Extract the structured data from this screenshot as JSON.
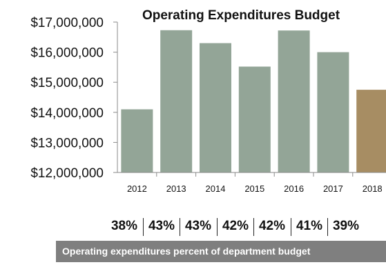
{
  "chart_data": {
    "type": "bar",
    "title": "Operating Expenditures Budget",
    "categories": [
      "2012",
      "2013",
      "2014",
      "2015",
      "2016",
      "2017",
      "2018"
    ],
    "values": [
      14100000,
      16730000,
      16300000,
      15520000,
      16720000,
      16000000,
      14750000
    ],
    "bar_colors": [
      "#93a597",
      "#93a597",
      "#93a597",
      "#93a597",
      "#93a597",
      "#93a597",
      "#a78d63"
    ],
    "ylim": [
      12000000,
      17000000
    ],
    "yticks": [
      "$12,000,000",
      "$13,000,000",
      "$14,000,000",
      "$15,000,000",
      "$16,000,000",
      "$17,000,000"
    ],
    "xlabel": "",
    "ylabel": "",
    "grid": false,
    "legend": "none"
  },
  "percent_row": [
    "38%",
    "43%",
    "43%",
    "42%",
    "42%",
    "41%",
    "39%"
  ],
  "footer": {
    "text": "Operating expenditures percent of department budget",
    "background": "#7f7f7f"
  }
}
